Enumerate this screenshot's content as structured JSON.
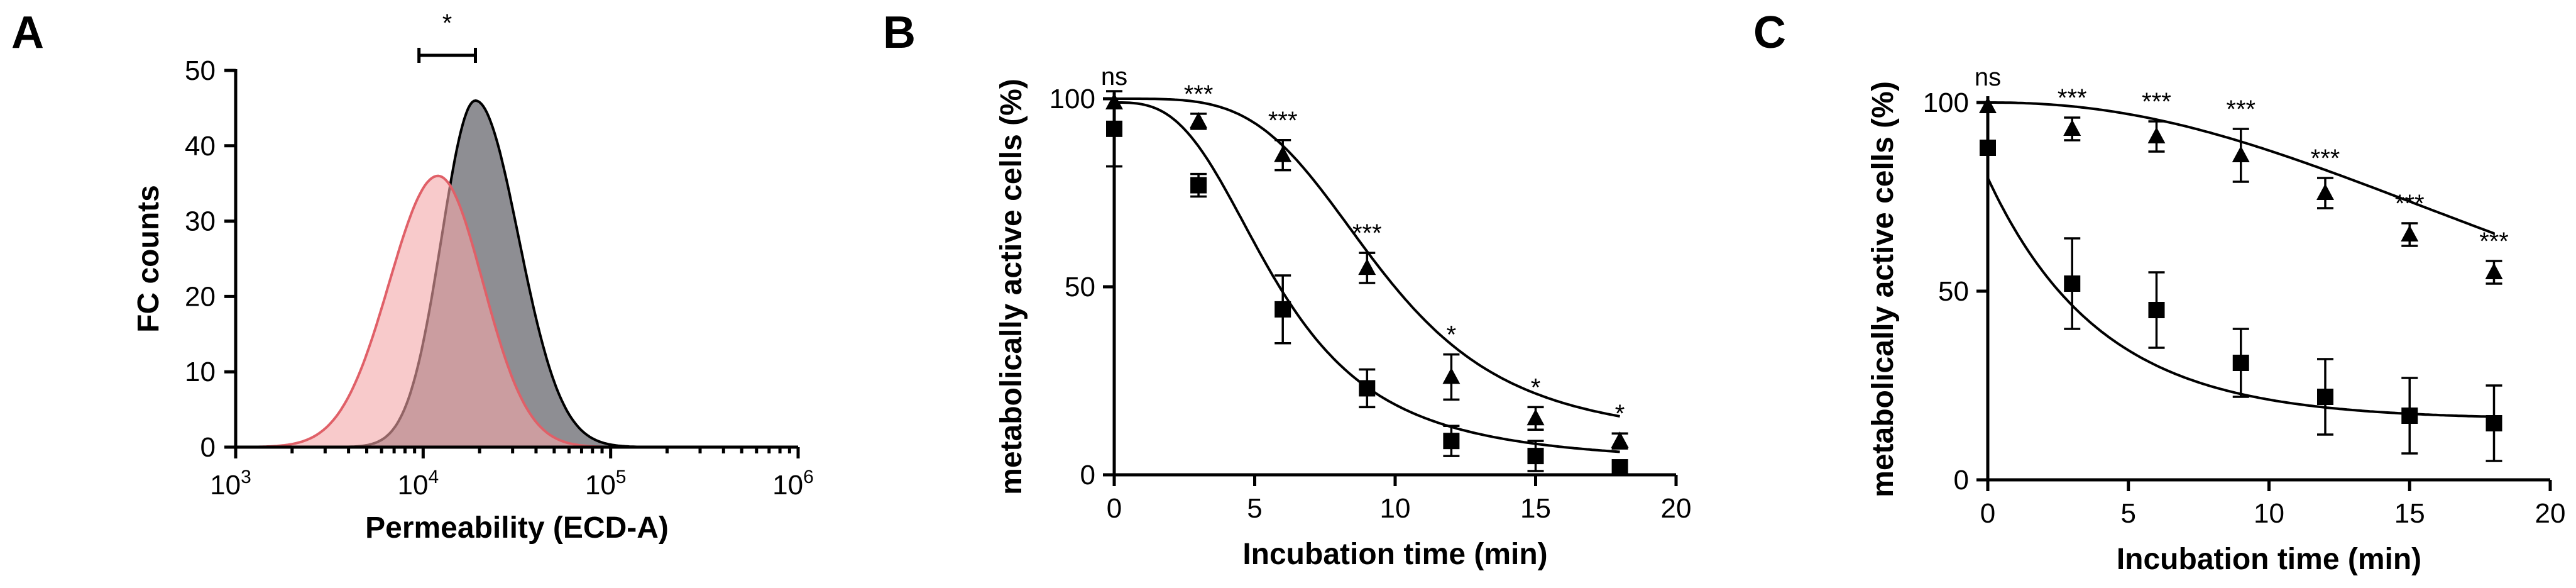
{
  "chart_data": [
    {
      "panel": "A",
      "type": "area",
      "xlabel": "Permeability (ECD-A)",
      "ylabel": "FC counts",
      "xscale": "log",
      "xlim": [
        1000,
        1000000
      ],
      "ylim": [
        0,
        50
      ],
      "yticks": [
        0,
        10,
        20,
        30,
        40,
        50
      ],
      "xticks": [
        {
          "base": "10",
          "exp": "3",
          "value": 1000
        },
        {
          "base": "10",
          "exp": "4",
          "value": 10000
        },
        {
          "base": "10",
          "exp": "5",
          "value": 100000
        },
        {
          "base": "10",
          "exp": "6",
          "value": 1000000
        }
      ],
      "series": [
        {
          "name": "grey histogram",
          "color": "#8e8e93",
          "edge": "#000000",
          "peak_x": 19000,
          "peak_y": 46,
          "sigma_left_log": 0.18,
          "sigma_right_log": 0.23
        },
        {
          "name": "red histogram",
          "color": "#f4a6a8",
          "edge": "#e06068",
          "peak_x": 12000,
          "peak_y": 36,
          "sigma_left_log": 0.26,
          "sigma_right_log": 0.24
        }
      ],
      "annotation": {
        "text": "*",
        "from_x": 9500,
        "to_x": 19000
      }
    },
    {
      "panel": "B",
      "type": "scatter",
      "xlabel": "Incubation time (min)",
      "ylabel": "metabolically active cells (%)",
      "xlim": [
        0,
        20
      ],
      "ylim": [
        0,
        100
      ],
      "xticks": [
        0,
        5,
        10,
        15,
        20
      ],
      "yticks": [
        0,
        50,
        100
      ],
      "x": [
        0,
        3,
        6,
        9,
        12,
        15,
        18
      ],
      "series": [
        {
          "name": "triangles",
          "marker": "triangle",
          "values": [
            99,
            94,
            85,
            55,
            26,
            15,
            9
          ],
          "errors": [
            0,
            2,
            4,
            4,
            6,
            3,
            2
          ],
          "fit": {
            "top": 100,
            "bottom": 9,
            "ec50": 9.5,
            "hill": 4.0
          }
        },
        {
          "name": "squares",
          "marker": "square",
          "values": [
            92,
            77,
            44,
            23,
            9,
            5,
            2
          ],
          "errors": [
            10,
            3,
            9,
            5,
            4,
            4,
            0
          ],
          "fit": {
            "top": 99,
            "bottom": 3,
            "ec50": 5.8,
            "hill": 3.0
          }
        }
      ],
      "significance": [
        "ns",
        "***",
        "***",
        "***",
        "*",
        "*",
        "*"
      ]
    },
    {
      "panel": "C",
      "type": "scatter",
      "xlabel": "Incubation time (min)",
      "ylabel": "metabolically active cells (%)",
      "xlim": [
        0,
        20
      ],
      "ylim": [
        0,
        100
      ],
      "xticks": [
        0,
        5,
        10,
        15,
        20
      ],
      "yticks": [
        0,
        50,
        100
      ],
      "x": [
        0,
        3,
        6,
        9,
        12,
        15,
        18
      ],
      "series": [
        {
          "name": "triangles",
          "marker": "triangle",
          "values": [
            99,
            93,
            91,
            86,
            76,
            65,
            55
          ],
          "errors": [
            0,
            3,
            4,
            7,
            4,
            3,
            3
          ],
          "fit": {
            "top": 100,
            "bottom": 0,
            "ec50": 24,
            "hill": 2.2
          }
        },
        {
          "name": "squares",
          "marker": "square",
          "values": [
            88,
            52,
            45,
            31,
            22,
            17,
            15
          ],
          "errors": [
            0,
            12,
            10,
            9,
            10,
            10,
            10
          ],
          "fit": {
            "y0": 80,
            "plateau": 16,
            "k": 0.25
          }
        }
      ],
      "significance": [
        "ns",
        "***",
        "***",
        "***",
        "***",
        "***",
        "***"
      ]
    }
  ]
}
